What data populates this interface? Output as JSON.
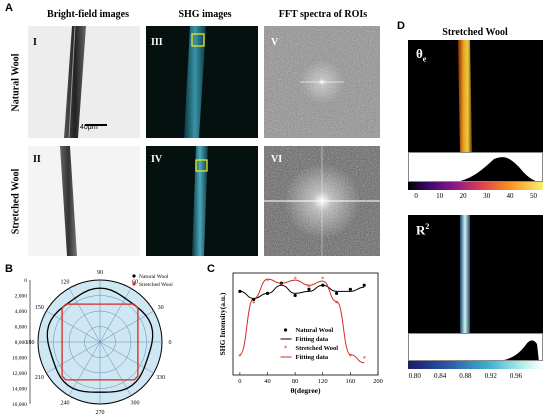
{
  "panels": {
    "A": {
      "letter": "A",
      "headers": [
        "Bright-field images",
        "SHG images",
        "FFT spectra of ROIs"
      ],
      "rows": [
        "Natural Wool",
        "Stretched Wool"
      ],
      "labels": [
        "I",
        "II",
        "III",
        "IV",
        "V",
        "VI"
      ],
      "scalebar": "40μm"
    },
    "B": {
      "letter": "B"
    },
    "C": {
      "letter": "C"
    },
    "D": {
      "letter": "D",
      "title": "Stretched Wool",
      "sub1": "θe",
      "sub1_main": "θ",
      "sub1_sub": "e",
      "sub2_main": "R",
      "sub2_sup": "2"
    }
  },
  "polar": {
    "angle_labels": [
      "0",
      "30",
      "60",
      "90",
      "120",
      "150",
      "180",
      "210",
      "240",
      "270",
      "300",
      "330"
    ],
    "radial_ticks": [
      "0",
      "2,000",
      "4,000",
      "6,000",
      "8,000",
      "10,000",
      "12,000",
      "14,000",
      "16,000"
    ],
    "legend": [
      "Natural Wool",
      "Stretched Wool"
    ],
    "colors": {
      "natural": "#000000",
      "stretched": "#d62b1e"
    }
  },
  "chart_data": {
    "type": "line",
    "xlabel": "θ(degree)",
    "ylabel": "SHG Intensity(a.u.)",
    "xlim": [
      -10,
      200
    ],
    "xticks": [
      "0",
      "40",
      "80",
      "120",
      "160",
      "200"
    ],
    "x": [
      0,
      20,
      40,
      60,
      80,
      100,
      120,
      140,
      160,
      180
    ],
    "series": [
      {
        "name": "Natural Wool",
        "values": [
          0.82,
          0.74,
          0.8,
          0.9,
          0.78,
          0.84,
          0.88,
          0.8,
          0.84,
          0.88
        ]
      },
      {
        "name": "Fitting data",
        "values": [
          0.82,
          0.75,
          0.8,
          0.88,
          0.8,
          0.82,
          0.88,
          0.82,
          0.82,
          0.86
        ]
      },
      {
        "name": "Stretched Wool",
        "values": [
          0.18,
          0.7,
          0.92,
          0.88,
          0.94,
          0.86,
          0.94,
          0.7,
          0.18,
          0.16
        ]
      },
      {
        "name": "Fitting data",
        "values": [
          0.2,
          0.75,
          0.94,
          0.9,
          0.93,
          0.88,
          0.92,
          0.72,
          0.2,
          0.12
        ]
      }
    ],
    "legend": [
      "Natural Wool",
      "Fitting data",
      "Stretched Wool",
      "Fitting data"
    ]
  },
  "histogram_theta": {
    "ticks": [
      "0",
      "10",
      "20",
      "30",
      "40",
      "50"
    ]
  },
  "histogram_r2": {
    "ticks": [
      "0.80",
      "0.84",
      "0.88",
      "0.92",
      "0.96"
    ]
  }
}
